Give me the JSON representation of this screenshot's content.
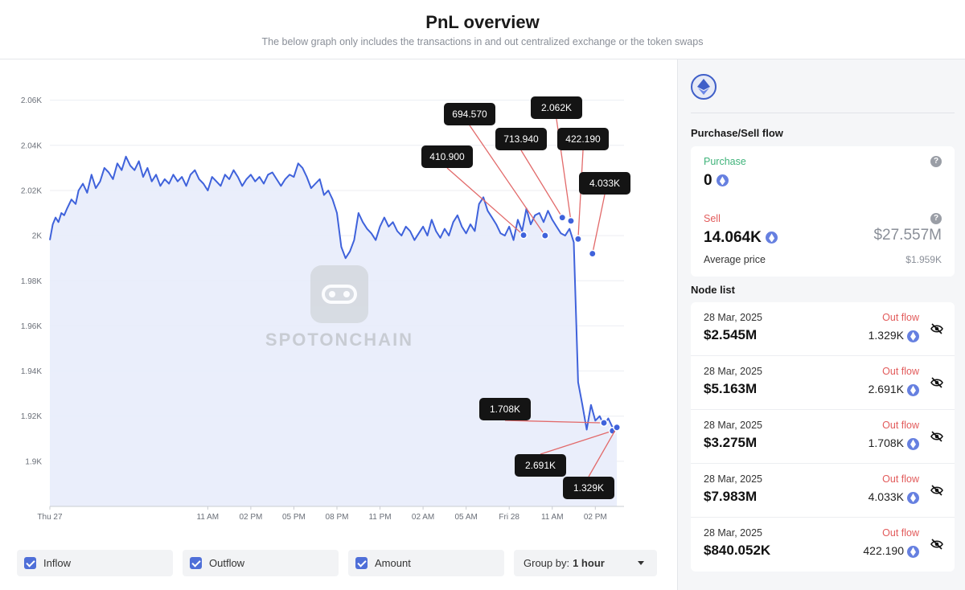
{
  "header": {
    "title": "PnL overview",
    "subtitle": "The below graph only includes the transactions in and out centralized exchange or the token swaps"
  },
  "watermark": {
    "text": "SPOTONCHAIN"
  },
  "chart_data": {
    "type": "area",
    "title": "",
    "xlabel": "",
    "ylabel": "",
    "ylim": [
      1880,
      2067
    ],
    "y_ticks": [
      "2.06K",
      "2.04K",
      "2.02K",
      "2K",
      "1.98K",
      "1.96K",
      "1.94K",
      "1.92K",
      "1.9K"
    ],
    "y_tick_values": [
      2060,
      2040,
      2020,
      2000,
      1980,
      1960,
      1940,
      1920,
      1900
    ],
    "x_ticks": [
      "Thu 27",
      "11 AM",
      "02 PM",
      "05 PM",
      "08 PM",
      "11 PM",
      "02 AM",
      "05 AM",
      "Fri 28",
      "11 AM",
      "02 PM"
    ],
    "x_tick_hours": [
      0,
      11,
      14,
      17,
      20,
      23,
      26,
      29,
      32,
      35,
      38
    ],
    "xlim_hours": [
      0,
      40
    ],
    "colors": {
      "line": "#3f62db",
      "fill": "#e8ecfb",
      "callout_line": "#e26a6a",
      "callout_bg": "#141414",
      "grid": "#eceef2"
    },
    "series": [
      {
        "values_x_hours": [
          0,
          0.2,
          0.4,
          0.6,
          0.8,
          1.0,
          1.2,
          1.5,
          1.8,
          2.0,
          2.3,
          2.6,
          2.9,
          3.2,
          3.5,
          3.8,
          4.1,
          4.4,
          4.7,
          5.0,
          5.3,
          5.6,
          5.9,
          6.2,
          6.5,
          6.8,
          7.1,
          7.4,
          7.7,
          8.0,
          8.3,
          8.6,
          8.9,
          9.2,
          9.5,
          9.8,
          10.1,
          10.4,
          10.7,
          11.0,
          11.3,
          11.6,
          11.9,
          12.2,
          12.5,
          12.8,
          13.1,
          13.4,
          13.7,
          14.0,
          14.3,
          14.6,
          14.9,
          15.2,
          15.5,
          15.8,
          16.1,
          16.4,
          16.7,
          17.0,
          17.3,
          17.6,
          17.9,
          18.2,
          18.5,
          18.8,
          19.1,
          19.4,
          19.7,
          20.0,
          20.3,
          20.6,
          20.9,
          21.2,
          21.5,
          21.8,
          22.1,
          22.4,
          22.7,
          23.0,
          23.3,
          23.6,
          23.9,
          24.2,
          24.5,
          24.8,
          25.1,
          25.4,
          25.7,
          26.0,
          26.3,
          26.6,
          26.9,
          27.2,
          27.5,
          27.8,
          28.1,
          28.4,
          28.7,
          29.0,
          29.3,
          29.6,
          29.9,
          30.2,
          30.5,
          30.8,
          31.1,
          31.4,
          31.7,
          32.0,
          32.3,
          32.6,
          32.9,
          33.2,
          33.5,
          33.8,
          34.1,
          34.4,
          34.7,
          35.0,
          35.3,
          35.6,
          35.9,
          36.2,
          36.5,
          36.8,
          37.1,
          37.4,
          37.7,
          38.0,
          38.3,
          38.6,
          38.9,
          39.2,
          39.5
        ],
        "values": [
          1998,
          2005,
          2008,
          2006,
          2010,
          2009,
          2012,
          2016,
          2014,
          2020,
          2023,
          2019,
          2027,
          2021,
          2024,
          2030,
          2028,
          2025,
          2032,
          2029,
          2035,
          2031,
          2029,
          2033,
          2026,
          2030,
          2024,
          2027,
          2022,
          2025,
          2023,
          2027,
          2024,
          2026,
          2022,
          2027,
          2029,
          2025,
          2023,
          2020,
          2026,
          2024,
          2022,
          2027,
          2025,
          2029,
          2026,
          2022,
          2025,
          2027,
          2024,
          2026,
          2023,
          2027,
          2028,
          2025,
          2022,
          2025,
          2027,
          2026,
          2032,
          2030,
          2026,
          2021,
          2023,
          2025,
          2018,
          2020,
          2016,
          2010,
          1995,
          1990,
          1993,
          1998,
          2010,
          2006,
          2003,
          2001,
          1998,
          2004,
          2008,
          2004,
          2006,
          2002,
          2000,
          2004,
          2002,
          1998,
          2001,
          2004,
          2000,
          2007,
          2002,
          1999,
          2003,
          2000,
          2006,
          2009,
          2004,
          2001,
          2005,
          2002,
          2014,
          2017,
          2011,
          2008,
          2005,
          2001,
          2000,
          2004,
          1998,
          2007,
          2002,
          2012,
          2005,
          2009,
          2010,
          2006,
          2011,
          2007,
          2004,
          2001,
          2000,
          2003,
          1997,
          1935,
          1925,
          1914,
          1925,
          1918,
          1920,
          1916,
          1919,
          1915,
          1916
        ]
      }
    ],
    "callouts": [
      {
        "label": "410.900",
        "x_hours": 33.0,
        "y": 2000.2
      },
      {
        "label": "694.570",
        "x_hours": 34.5,
        "y": 2000.0
      },
      {
        "label": "713.940",
        "x_hours": 35.7,
        "y": 2008.0
      },
      {
        "label": "2.062K",
        "x_hours": 36.3,
        "y": 2006.5
      },
      {
        "label": "422.190",
        "x_hours": 36.8,
        "y": 1998.5
      },
      {
        "label": "4.033K",
        "x_hours": 37.8,
        "y": 1992.0
      },
      {
        "label": "1.708K",
        "x_hours": 38.6,
        "y": 1917.0
      },
      {
        "label": "2.691K",
        "x_hours": 39.2,
        "y": 1913.5
      },
      {
        "label": "1.329K",
        "x_hours": 39.5,
        "y": 1915.0
      }
    ]
  },
  "controls": {
    "inflow_label": "Inflow",
    "outflow_label": "Outflow",
    "amount_label": "Amount",
    "group_by_label": "Group by:",
    "group_by_value": "1 hour"
  },
  "sidebar": {
    "flow_title": "Purchase/Sell flow",
    "purchase_label": "Purchase",
    "purchase_value": "0",
    "sell_label": "Sell",
    "sell_value": "14.064K",
    "sell_usd": "$27.557M",
    "average_price_label": "Average price",
    "average_price_value": "$1.959K",
    "help_glyph": "?",
    "node_list_title": "Node list",
    "nodes": [
      {
        "date": "28 Mar, 2025",
        "usd": "$2.545M",
        "flow": "Out flow",
        "amount": "1.329K"
      },
      {
        "date": "28 Mar, 2025",
        "usd": "$5.163M",
        "flow": "Out flow",
        "amount": "2.691K"
      },
      {
        "date": "28 Mar, 2025",
        "usd": "$3.275M",
        "flow": "Out flow",
        "amount": "1.708K"
      },
      {
        "date": "28 Mar, 2025",
        "usd": "$7.983M",
        "flow": "Out flow",
        "amount": "4.033K"
      },
      {
        "date": "28 Mar, 2025",
        "usd": "$840.052K",
        "flow": "Out flow",
        "amount": "422.190"
      }
    ]
  }
}
